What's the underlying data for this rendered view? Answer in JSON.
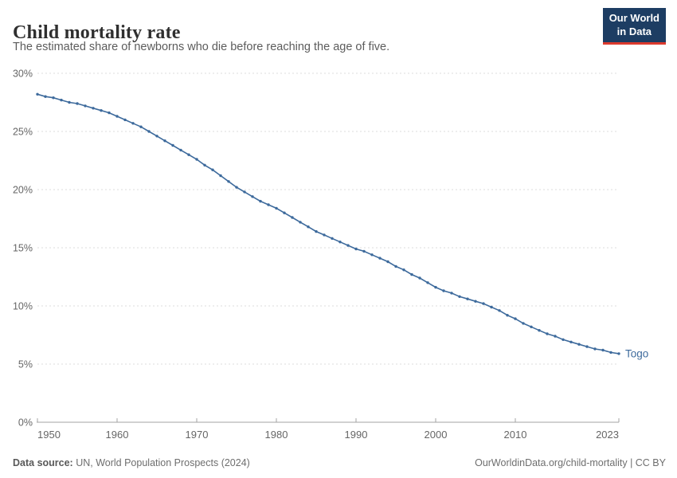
{
  "header": {
    "logo": {
      "line1": "Our World",
      "line2": "in Data"
    }
  },
  "footer": {
    "source_label": "Data source:",
    "source_text": " UN, World Population Prospects (2024)",
    "link_text": "OurWorldinData.org/child-mortality | CC BY"
  },
  "colors": {
    "line": "#3d6a9c",
    "entity_label": "#3d6a9c",
    "logo_bg": "#1d3d63",
    "logo_accent": "#dc3a2e",
    "grid": "#dcdcdc",
    "axis": "#a3a3a3",
    "tick_label": "#666666"
  },
  "chart_data": {
    "type": "line",
    "title": "Child mortality rate",
    "subtitle": "The estimated share of newborns who die before reaching the age of five.",
    "unit": "%",
    "grid": "horizontal-dashed",
    "legend_position": "end-of-line",
    "xlim": [
      1950,
      2023
    ],
    "ylim": [
      0,
      30
    ],
    "x_ticks": [
      {
        "value": 1950,
        "label": "1950"
      },
      {
        "value": 1960,
        "label": "1960"
      },
      {
        "value": 1970,
        "label": "1970"
      },
      {
        "value": 1980,
        "label": "1980"
      },
      {
        "value": 1990,
        "label": "1990"
      },
      {
        "value": 2000,
        "label": "2000"
      },
      {
        "value": 2010,
        "label": "2010"
      },
      {
        "value": 2023,
        "label": "2023"
      }
    ],
    "y_ticks": [
      {
        "value": 0,
        "label": "0%"
      },
      {
        "value": 5,
        "label": "5%"
      },
      {
        "value": 10,
        "label": "10%"
      },
      {
        "value": 15,
        "label": "15%"
      },
      {
        "value": 20,
        "label": "20%"
      },
      {
        "value": 25,
        "label": "25%"
      },
      {
        "value": 30,
        "label": "30%"
      }
    ],
    "x": [
      1950,
      1951,
      1952,
      1953,
      1954,
      1955,
      1956,
      1957,
      1958,
      1959,
      1960,
      1961,
      1962,
      1963,
      1964,
      1965,
      1966,
      1967,
      1968,
      1969,
      1970,
      1971,
      1972,
      1973,
      1974,
      1975,
      1976,
      1977,
      1978,
      1979,
      1980,
      1981,
      1982,
      1983,
      1984,
      1985,
      1986,
      1987,
      1988,
      1989,
      1990,
      1991,
      1992,
      1993,
      1994,
      1995,
      1996,
      1997,
      1998,
      1999,
      2000,
      2001,
      2002,
      2003,
      2004,
      2005,
      2006,
      2007,
      2008,
      2009,
      2010,
      2011,
      2012,
      2013,
      2014,
      2015,
      2016,
      2017,
      2018,
      2019,
      2020,
      2021,
      2022,
      2023
    ],
    "series": [
      {
        "name": "Togo",
        "values": [
          28.2,
          28.0,
          27.9,
          27.7,
          27.5,
          27.4,
          27.2,
          27.0,
          26.8,
          26.6,
          26.3,
          26.0,
          25.7,
          25.4,
          25.0,
          24.6,
          24.2,
          23.8,
          23.4,
          23.0,
          22.6,
          22.1,
          21.7,
          21.2,
          20.7,
          20.2,
          19.8,
          19.4,
          19.0,
          18.7,
          18.4,
          18.0,
          17.6,
          17.2,
          16.8,
          16.4,
          16.1,
          15.8,
          15.5,
          15.2,
          14.9,
          14.7,
          14.4,
          14.1,
          13.8,
          13.4,
          13.1,
          12.7,
          12.4,
          12.0,
          11.6,
          11.3,
          11.1,
          10.8,
          10.6,
          10.4,
          10.2,
          9.9,
          9.6,
          9.2,
          8.9,
          8.5,
          8.2,
          7.9,
          7.6,
          7.4,
          7.1,
          6.9,
          6.7,
          6.5,
          6.3,
          6.2,
          6.0,
          5.9
        ]
      }
    ]
  }
}
